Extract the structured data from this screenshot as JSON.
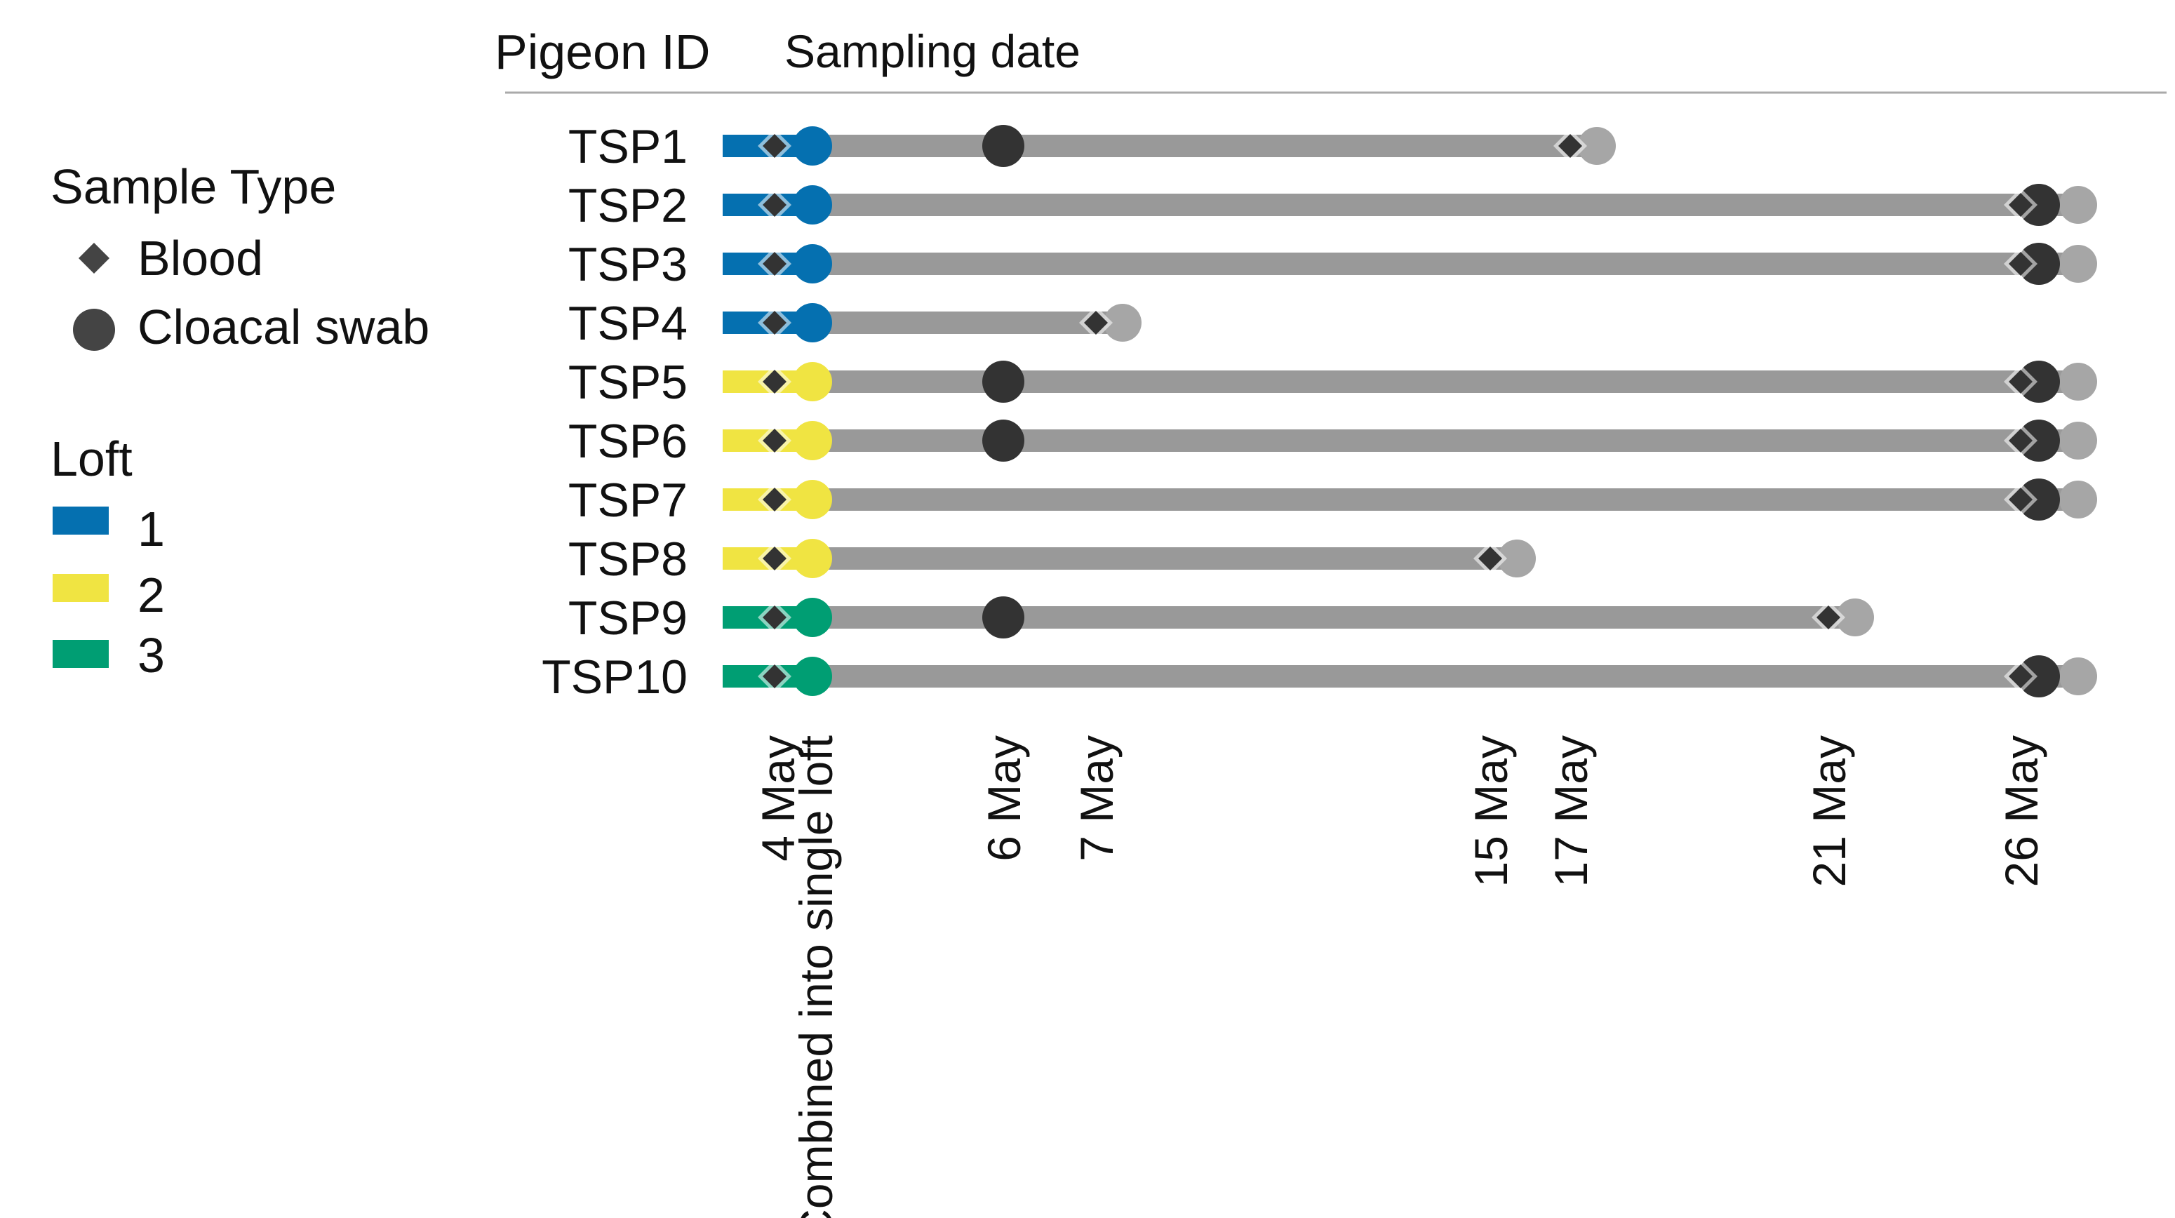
{
  "chart_data": {
    "type": "timeline",
    "title": "",
    "header": {
      "id_label": "Pigeon ID",
      "date_label": "Sampling date"
    },
    "x_ticks": [
      {
        "key": "4may",
        "label": "4 May",
        "day": 4
      },
      {
        "key": "combined",
        "label": "Combined into single loft",
        "day": 4.16
      },
      {
        "key": "6may",
        "label": "6 May",
        "day": 6
      },
      {
        "key": "7may",
        "label": "7 May",
        "day": 7
      },
      {
        "key": "15may",
        "label": "15 May",
        "day": 15
      },
      {
        "key": "17may",
        "label": "17 May",
        "day": 17
      },
      {
        "key": "21may",
        "label": "21 May",
        "day": 21
      },
      {
        "key": "26may",
        "label": "26 May",
        "day": 26
      }
    ],
    "legend": {
      "sample_type_title": "Sample Type",
      "sample_types": [
        {
          "key": "blood",
          "label": "Blood",
          "shape": "diamond"
        },
        {
          "key": "swab",
          "label": "Cloacal swab",
          "shape": "circle"
        }
      ],
      "loft_title": "Loft",
      "lofts": [
        {
          "key": "1",
          "label": "1",
          "color": "#0570b0"
        },
        {
          "key": "2",
          "label": "2",
          "color": "#f0e442"
        },
        {
          "key": "3",
          "label": "3",
          "color": "#009e73"
        }
      ]
    },
    "colors": {
      "track": "#999999",
      "sample_marker": "#333333",
      "end_marker": "#a6a6a6",
      "rule": "#aaaaaa"
    },
    "pigeons": [
      {
        "id": "TSP1",
        "loft": "1",
        "end_day": 17,
        "blood_days": [
          4,
          17
        ],
        "swab_days": [
          6
        ],
        "tail_swab": false
      },
      {
        "id": "TSP2",
        "loft": "1",
        "end_day": 26,
        "blood_days": [
          4,
          26
        ],
        "swab_days": [],
        "tail_swab": true
      },
      {
        "id": "TSP3",
        "loft": "1",
        "end_day": 26,
        "blood_days": [
          4,
          26
        ],
        "swab_days": [],
        "tail_swab": true
      },
      {
        "id": "TSP4",
        "loft": "1",
        "end_day": 7,
        "blood_days": [
          4,
          7
        ],
        "swab_days": [],
        "tail_swab": false
      },
      {
        "id": "TSP5",
        "loft": "2",
        "end_day": 26,
        "blood_days": [
          4,
          26
        ],
        "swab_days": [
          6
        ],
        "tail_swab": true
      },
      {
        "id": "TSP6",
        "loft": "2",
        "end_day": 26,
        "blood_days": [
          4,
          26
        ],
        "swab_days": [
          6
        ],
        "tail_swab": true
      },
      {
        "id": "TSP7",
        "loft": "2",
        "end_day": 26,
        "blood_days": [
          4,
          26
        ],
        "swab_days": [],
        "tail_swab": true
      },
      {
        "id": "TSP8",
        "loft": "2",
        "end_day": 15,
        "blood_days": [
          4,
          15
        ],
        "swab_days": [],
        "tail_swab": false
      },
      {
        "id": "TSP9",
        "loft": "3",
        "end_day": 21,
        "blood_days": [
          4,
          21
        ],
        "swab_days": [
          6
        ],
        "tail_swab": false
      },
      {
        "id": "TSP10",
        "loft": "3",
        "end_day": 26,
        "blood_days": [
          4,
          26
        ],
        "swab_days": [],
        "tail_swab": true
      }
    ]
  }
}
